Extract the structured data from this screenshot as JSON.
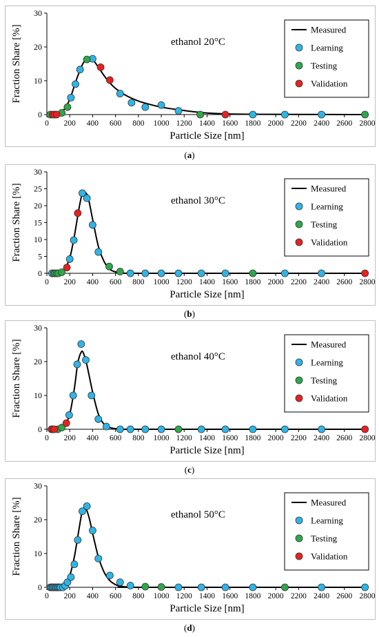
{
  "axes": {
    "xlabel": "Particle Size [nm]",
    "ylabel": "Fraction Share [%]",
    "xticks": [
      0,
      200,
      400,
      600,
      800,
      1000,
      1200,
      1400,
      1600,
      1800,
      2000,
      2200,
      2400,
      2600,
      2800
    ]
  },
  "legend": {
    "measured": "Measured",
    "learning": "Learning",
    "testing": "Testing",
    "validation": "Validation"
  },
  "colors": {
    "learning": "#2eb5e8",
    "testing": "#2ea84a",
    "validation": "#e8211f",
    "measured": "#000000"
  },
  "chart_data": [
    {
      "type": "scatter",
      "title": "ethanol 20°C",
      "sublabel": "a",
      "xlabel": "Particle Size [nm]",
      "ylabel": "Fraction Share [%]",
      "xlim": [
        0,
        2800
      ],
      "ylim": [
        0,
        30
      ],
      "yticks": [
        0,
        10,
        20,
        30
      ],
      "measured": {
        "x": [
          30,
          60,
          100,
          150,
          200,
          250,
          300,
          340,
          370,
          400,
          440,
          480,
          520,
          560,
          620,
          700,
          800,
          900,
          1000,
          1150,
          1350,
          1560,
          1800,
          2100,
          2800
        ],
        "y": [
          0,
          0,
          0.3,
          1.5,
          4.5,
          9.5,
          14,
          16.3,
          16.7,
          16.3,
          14.5,
          12.5,
          10.6,
          9,
          7.2,
          5.5,
          4,
          3,
          2.2,
          1.4,
          0.6,
          0.2,
          0.1,
          0.05,
          0
        ]
      },
      "series": [
        {
          "name": "Learning",
          "x": [
            210,
            250,
            290,
            400,
            640,
            740,
            860,
            1000,
            1150,
            1800,
            2080,
            2400
          ],
          "y": [
            5,
            9,
            13.3,
            16.5,
            6.2,
            3.5,
            2.2,
            2.8,
            1.1,
            0,
            0,
            0
          ]
        },
        {
          "name": "Testing",
          "x": [
            30,
            80,
            130,
            180,
            350,
            1340,
            2780
          ],
          "y": [
            0,
            0,
            0.5,
            2.2,
            16.3,
            0,
            0
          ]
        },
        {
          "name": "Validation",
          "x": [
            50,
            65,
            85,
            470,
            550,
            1560
          ],
          "y": [
            0,
            0,
            0,
            14,
            10.2,
            0
          ]
        }
      ]
    },
    {
      "type": "scatter",
      "title": "ethanol 30°C",
      "sublabel": "b",
      "xlabel": "Particle Size [nm]",
      "ylabel": "Fraction Share [%]",
      "xlim": [
        0,
        2800
      ],
      "ylim": [
        0,
        30
      ],
      "yticks": [
        0,
        5,
        10,
        15,
        20,
        25,
        30
      ],
      "measured": {
        "x": [
          30,
          60,
          100,
          150,
          200,
          240,
          280,
          310,
          330,
          360,
          400,
          450,
          500,
          550,
          600,
          650,
          700,
          800,
          2800
        ],
        "y": [
          0,
          0,
          0.1,
          1,
          4.5,
          11,
          19,
          23.7,
          24,
          22.5,
          16,
          8,
          3.5,
          1.2,
          0.4,
          0.1,
          0,
          0,
          0
        ]
      },
      "series": [
        {
          "name": "Learning",
          "x": [
            45,
            60,
            200,
            235,
            310,
            350,
            400,
            450,
            730,
            860,
            1000,
            1150,
            1350,
            1560,
            2080,
            2400
          ],
          "y": [
            0,
            0,
            4.2,
            9.8,
            23.7,
            22.2,
            14.3,
            6.3,
            0,
            0,
            0,
            0,
            0,
            0,
            0,
            0
          ]
        },
        {
          "name": "Testing",
          "x": [
            70,
            85,
            100,
            130,
            545,
            640,
            1800
          ],
          "y": [
            0,
            0,
            0,
            0.3,
            2,
            0.5,
            0
          ]
        },
        {
          "name": "Validation",
          "x": [
            175,
            270,
            2780
          ],
          "y": [
            1.7,
            17.8,
            0
          ]
        }
      ]
    },
    {
      "type": "scatter",
      "title": "ethanol 40°C",
      "sublabel": "c",
      "xlabel": "Particle Size [nm]",
      "ylabel": "Fraction Share [%]",
      "xlim": [
        0,
        2800
      ],
      "ylim": [
        0,
        30
      ],
      "yticks": [
        0,
        10,
        20,
        30
      ],
      "measured": {
        "x": [
          30,
          60,
          100,
          150,
          200,
          240,
          270,
          300,
          320,
          350,
          400,
          450,
          500,
          550,
          600,
          650,
          700,
          800,
          2800
        ],
        "y": [
          0,
          0,
          0.1,
          0.8,
          4.5,
          12,
          19.5,
          22.8,
          22.5,
          19,
          11,
          4.5,
          1.5,
          0.5,
          0.2,
          0.05,
          0,
          0,
          0
        ]
      },
      "series": [
        {
          "name": "Learning",
          "x": [
            195,
            230,
            265,
            300,
            340,
            390,
            450,
            520,
            640,
            730,
            860,
            1000,
            1350,
            1560,
            1800,
            2080,
            2400
          ],
          "y": [
            4.2,
            10,
            19.2,
            25.2,
            20.5,
            10,
            3,
            0.8,
            0,
            0,
            0,
            0,
            0,
            0,
            0,
            0,
            0
          ]
        },
        {
          "name": "Testing",
          "x": [
            95,
            130,
            1150
          ],
          "y": [
            0,
            0.5,
            0
          ]
        },
        {
          "name": "Validation",
          "x": [
            40,
            55,
            65,
            170,
            2780
          ],
          "y": [
            0,
            0,
            0,
            1.8,
            0
          ]
        }
      ]
    },
    {
      "type": "scatter",
      "title": "ethanol 50°C",
      "sublabel": "d",
      "xlabel": "Particle Size [nm]",
      "ylabel": "Fraction Share [%]",
      "xlim": [
        0,
        2800
      ],
      "ylim": [
        0,
        30
      ],
      "yticks": [
        0,
        10,
        20,
        30
      ],
      "measured": {
        "x": [
          30,
          60,
          100,
          150,
          200,
          240,
          280,
          310,
          340,
          370,
          400,
          450,
          500,
          550,
          600,
          650,
          700,
          800,
          2800
        ],
        "y": [
          0,
          0,
          0.1,
          0.8,
          3.5,
          9,
          17,
          22.5,
          23.3,
          20.5,
          16,
          9,
          4.5,
          2,
          0.8,
          0.3,
          0.1,
          0,
          0
        ]
      },
      "series": [
        {
          "name": "Learning",
          "x": [
            30,
            40,
            50,
            60,
            70,
            80,
            90,
            100,
            110,
            120,
            140,
            160,
            180,
            210,
            240,
            270,
            310,
            350,
            400,
            450,
            550,
            640,
            730,
            1150,
            1350,
            1560,
            1800,
            2400,
            2780
          ],
          "y": [
            0,
            0,
            0,
            0,
            0,
            0,
            0,
            0,
            0,
            0,
            0,
            0.5,
            1.5,
            3,
            6.8,
            14,
            22.5,
            24,
            16.8,
            8.5,
            3.5,
            1.5,
            0.5,
            0,
            0,
            0,
            0,
            0,
            0
          ]
        },
        {
          "name": "Testing",
          "x": [
            860,
            1000,
            2080
          ],
          "y": [
            0.2,
            0.1,
            0
          ]
        },
        {
          "name": "Validation",
          "x": [],
          "y": []
        }
      ]
    }
  ]
}
